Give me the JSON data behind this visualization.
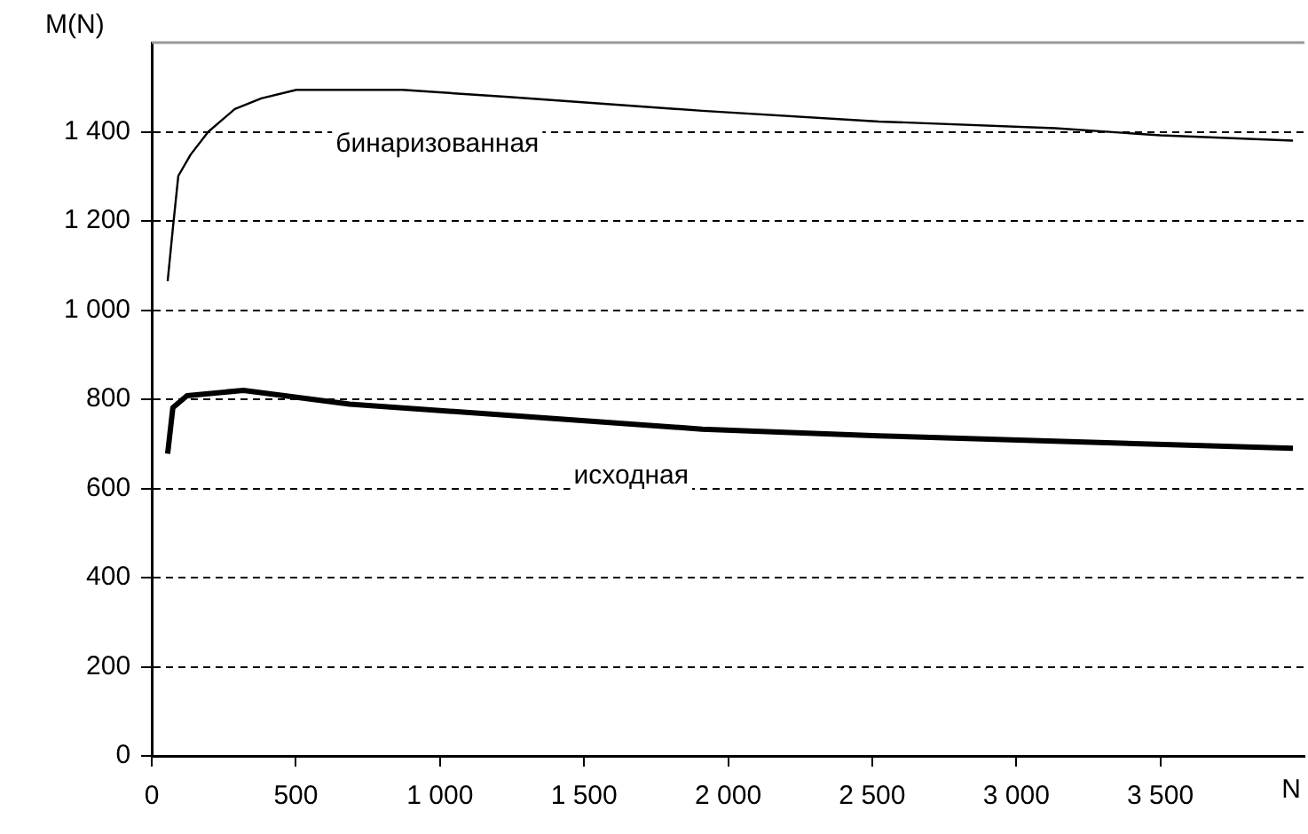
{
  "chart_data": {
    "type": "line",
    "xlabel": "N",
    "ylabel": "M(N)",
    "xlim": [
      0,
      4000
    ],
    "ylim": [
      0,
      1600
    ],
    "xticks": [
      0,
      500,
      {
        "value": 1000,
        "label": "1 000"
      },
      {
        "value": 1500,
        "label": "1 500"
      },
      {
        "value": 2000,
        "label": "2 000"
      },
      {
        "value": 2500,
        "label": "2 500"
      },
      {
        "value": 3000,
        "label": "3 000"
      },
      {
        "value": 3500,
        "label": "3 500"
      }
    ],
    "yticks": [
      0,
      200,
      400,
      600,
      800,
      {
        "value": 1000,
        "label": "1 000"
      },
      {
        "value": 1200,
        "label": "1 200"
      },
      {
        "value": 1400,
        "label": "1 400"
      }
    ],
    "grid": "y",
    "legend": false,
    "marker": "none",
    "line_style": "solid",
    "series": [
      {
        "name": "бинаризованная",
        "color": "#000000",
        "x": [
          55,
          73,
          92,
          135,
          196,
          288,
          380,
          502,
          870,
          1237,
          1910,
          2523,
          3135,
          3500,
          3960
        ],
        "values": [
          1065,
          1183,
          1301,
          1349,
          1400,
          1451,
          1475,
          1494,
          1494,
          1478,
          1447,
          1423,
          1408,
          1392,
          1380
        ]
      },
      {
        "name": "исходная",
        "color": "#000000",
        "x": [
          55,
          73,
          122,
          318,
          686,
          1298,
          1910,
          2523,
          3135,
          3960
        ],
        "values": [
          678,
          781,
          808,
          820,
          789,
          761,
          733,
          718,
          706,
          690
        ]
      }
    ]
  }
}
